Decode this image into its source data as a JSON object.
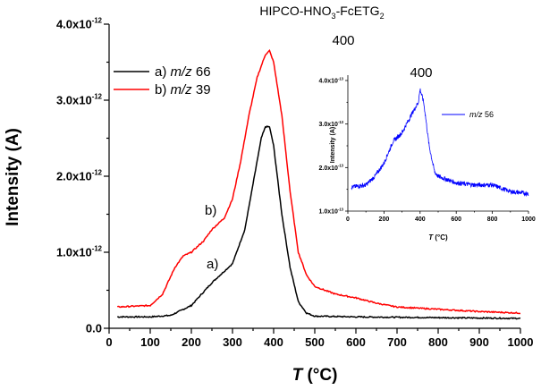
{
  "chart_data": [
    {
      "type": "line",
      "title": "HIPCO-HNO3-FcETG2",
      "title_parts": {
        "a": "HIPCO-HNO",
        "sub1": "3",
        "b": "-FcETG",
        "sub2": "2"
      },
      "xlabel": "T (°C)",
      "xlabel_parts": {
        "var": "T",
        "unit": " (°C)"
      },
      "ylabel": "Intensity (A)",
      "xlim": [
        0,
        1000
      ],
      "ylim": [
        0,
        4e-12
      ],
      "xticks": [
        "0",
        "100",
        "200",
        "300",
        "400",
        "500",
        "600",
        "700",
        "800",
        "900",
        "1000"
      ],
      "yticks": [
        {
          "mant": "0.0",
          "exp": ""
        },
        {
          "mant": "1.0x10",
          "exp": "-12"
        },
        {
          "mant": "2.0x10",
          "exp": "-12"
        },
        {
          "mant": "3.0x10",
          "exp": "-12"
        },
        {
          "mant": "4.0x10",
          "exp": "-12"
        }
      ],
      "annotations": {
        "peak": "400",
        "a": "a)",
        "b": "b)"
      },
      "legend_position": "top-left",
      "series": [
        {
          "name": "a) m/z 66",
          "prefix": "a) ",
          "mz": "m/z",
          "num": " 66",
          "color": "#000000",
          "x": [
            20,
            100,
            150,
            200,
            250,
            300,
            330,
            350,
            370,
            380,
            390,
            400,
            420,
            440,
            460,
            480,
            500,
            600,
            800,
            1000
          ],
          "y": [
            1.5e-13,
            1.5e-13,
            1.7e-13,
            3e-13,
            6e-13,
            8.5e-13,
            1.3e-12,
            1.9e-12,
            2.5e-12,
            2.65e-12,
            2.65e-12,
            2.4e-12,
            1.5e-12,
            8e-13,
            3.5e-13,
            2e-13,
            1.6e-13,
            1.5e-13,
            1.4e-13,
            1.3e-13
          ]
        },
        {
          "name": "b) m/z 39",
          "prefix": "b) ",
          "mz": "m/z",
          "num": " 39",
          "color": "#ff0000",
          "x": [
            20,
            100,
            130,
            160,
            180,
            200,
            230,
            250,
            280,
            300,
            320,
            340,
            360,
            380,
            390,
            400,
            420,
            440,
            460,
            480,
            500,
            550,
            600,
            650,
            700,
            800,
            900,
            1000
          ],
          "y": [
            2.8e-13,
            3e-13,
            4.5e-13,
            8e-13,
            9.5e-13,
            1e-12,
            1.15e-12,
            1.3e-12,
            1.45e-12,
            1.7e-12,
            2.2e-12,
            2.8e-12,
            3.3e-12,
            3.6e-12,
            3.65e-12,
            3.5e-12,
            2.8e-12,
            1.8e-12,
            1e-12,
            7e-13,
            5.5e-13,
            4.5e-13,
            4e-13,
            3.3e-13,
            2.8e-13,
            2.5e-13,
            2.2e-13,
            2e-13
          ]
        }
      ]
    },
    {
      "type": "line",
      "xlabel": "T (°C)",
      "xlabel_parts": {
        "var": "T",
        "unit": " (°C)"
      },
      "ylabel": "Intensity (A)",
      "xlim": [
        0,
        1000
      ],
      "ylim": [
        1e-13,
        4e-13
      ],
      "xticks": [
        "0",
        "200",
        "400",
        "600",
        "800",
        "1000"
      ],
      "yticks": [
        {
          "mant": "1.0x10",
          "exp": "-13"
        },
        {
          "mant": "2.0x10",
          "exp": "-13"
        },
        {
          "mant": "3.0x10",
          "exp": "-13"
        },
        {
          "mant": "4.0x10",
          "exp": "-13"
        }
      ],
      "annotations": {
        "peak": "400"
      },
      "legend_position": "right",
      "series": [
        {
          "name": "m/z 56",
          "mz": "m/z",
          "num": " 56",
          "color": "#0000ff",
          "x": [
            20,
            100,
            150,
            200,
            250,
            300,
            350,
            390,
            400,
            420,
            450,
            480,
            500,
            600,
            700,
            800,
            900,
            1000
          ],
          "y": [
            1.55e-13,
            1.6e-13,
            1.8e-13,
            2.1e-13,
            2.6e-13,
            2.8e-13,
            3.2e-13,
            3.5e-13,
            3.8e-13,
            3.5e-13,
            2.5e-13,
            1.9e-13,
            1.8e-13,
            1.65e-13,
            1.6e-13,
            1.6e-13,
            1.45e-13,
            1.4e-13
          ]
        }
      ]
    }
  ]
}
